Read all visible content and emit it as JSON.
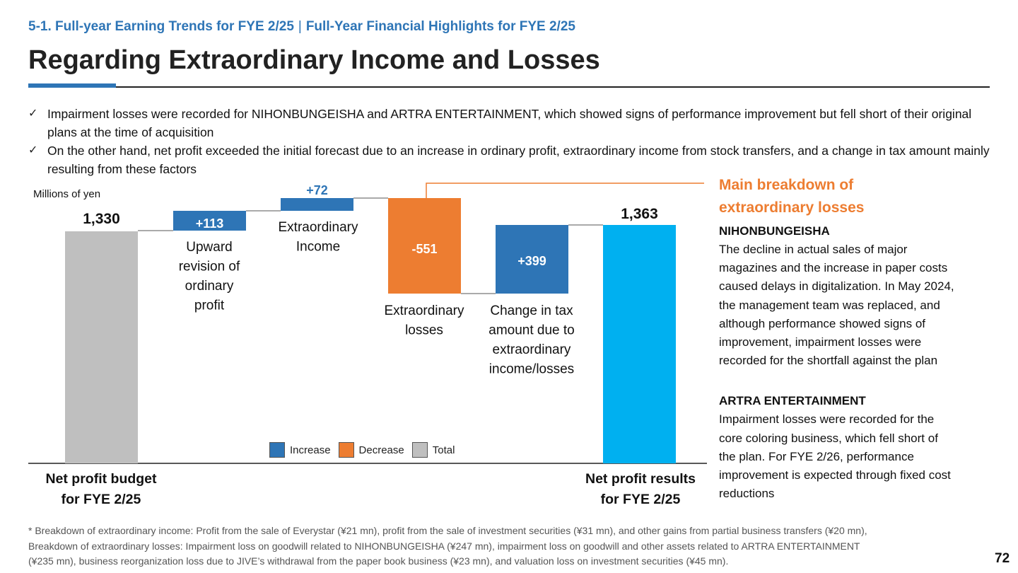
{
  "header": {
    "breadcrumb_left": "5-1. Full-year Earning Trends for FYE 2/25",
    "breadcrumb_right": "Full-Year Financial Highlights for FYE 2/25",
    "title": "Regarding Extraordinary Income and Losses"
  },
  "bullets": [
    "Impairment losses were recorded for NIHONBUNGEISHA and ARTRA ENTERTAINMENT, which showed signs of performance improvement but fell short of their original plans at the time of acquisition",
    "On the other hand, net profit exceeded the initial forecast due to an increase in ordinary profit, extraordinary income from stock transfers, and a change in tax amount mainly resulting from these factors"
  ],
  "chart_data": {
    "type": "waterfall",
    "unit_label": "Millions of yen",
    "steps": [
      {
        "kind": "total",
        "value": 1330,
        "value_label": "1,330",
        "label_lines": [
          "Net profit budget",
          "for FYE 2/25"
        ]
      },
      {
        "kind": "increase",
        "value": 113,
        "value_label": "+113",
        "label_lines": [
          "Upward",
          "revision of",
          "ordinary",
          "profit"
        ]
      },
      {
        "kind": "increase",
        "value": 72,
        "value_label": "+72",
        "label_lines": [
          "Extraordinary",
          "Income"
        ]
      },
      {
        "kind": "decrease",
        "value": -551,
        "value_label": "-551",
        "label_lines": [
          "Extraordinary",
          "losses"
        ]
      },
      {
        "kind": "increase",
        "value": 399,
        "value_label": "+399",
        "label_lines": [
          "Change in tax",
          "amount due to",
          "extraordinary",
          "income/losses"
        ]
      },
      {
        "kind": "total",
        "value": 1363,
        "value_label": "1,363",
        "label_lines": [
          "Net profit results",
          "for FYE 2/25"
        ]
      }
    ],
    "legend": [
      {
        "label": "Increase",
        "color": "#2e75b6"
      },
      {
        "label": "Decrease",
        "color": "#ed7d31"
      },
      {
        "label": "Total",
        "color": "#bfbfbf"
      }
    ],
    "colors": {
      "increase": "#2e75b6",
      "decrease": "#ed7d31",
      "total": "#bfbfbf",
      "result": "#00b0f0"
    }
  },
  "side_panel": {
    "title_lines": [
      "Main breakdown of",
      "extraordinary losses"
    ],
    "companies": [
      {
        "name": "NIHONBUNGEISHA",
        "lines": [
          "The decline in actual sales of major",
          "magazines and the increase in paper costs",
          "caused delays in digitalization. In May 2024,",
          "the management team was replaced, and",
          "although performance showed signs of",
          "improvement, impairment losses were",
          "recorded for the shortfall against the plan"
        ]
      },
      {
        "name": "ARTRA ENTERTAINMENT",
        "lines": [
          "Impairment losses were recorded for the",
          "core coloring business, which fell short of",
          "the plan. For FYE 2/26, performance",
          "improvement is expected through fixed cost",
          "reductions"
        ]
      }
    ]
  },
  "footnote": [
    "* Breakdown of extraordinary income: Profit from the sale of Everystar (¥21 mn), profit from the sale of investment securities (¥31 mn), and other gains from partial business transfers (¥20 mn),",
    "Breakdown of extraordinary losses: Impairment loss on goodwill related to NIHONBUNGEISHA (¥247 mn), impairment loss on goodwill and other assets related to ARTRA ENTERTAINMENT",
    "(¥235 mn), business reorganization loss due to JIVE’s withdrawal from the paper book business (¥23 mn), and valuation loss on investment securities (¥45 mn)."
  ],
  "page_number": "72",
  "colors": {
    "accent": "#2e75b6",
    "highlight": "#ed7d31",
    "text": "#111111"
  }
}
